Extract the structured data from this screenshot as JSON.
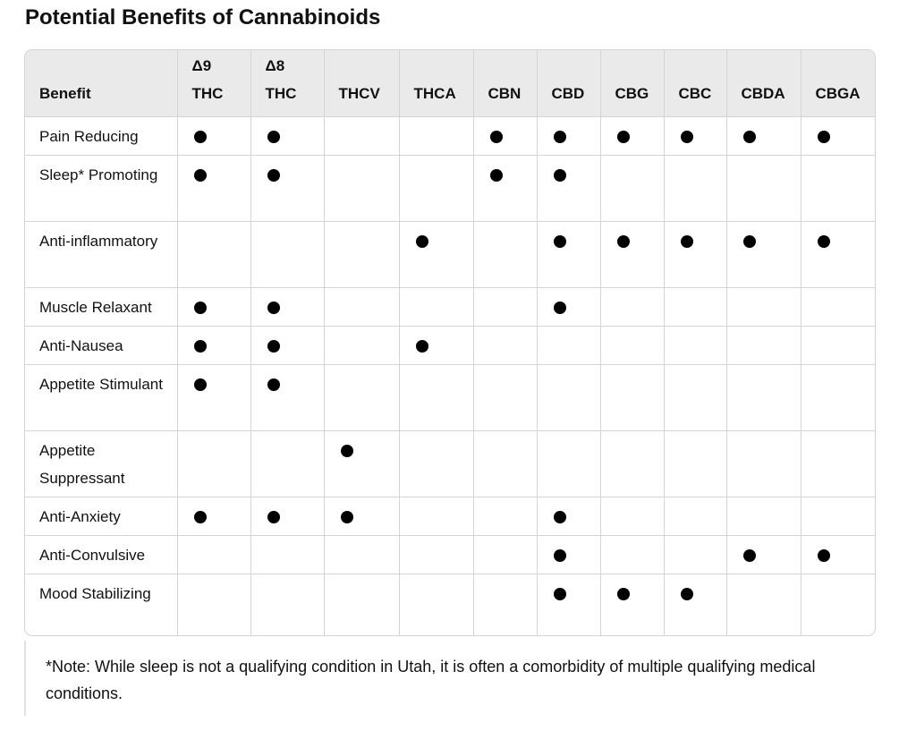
{
  "title": "Potential Benefits of Cannabinoids",
  "table": {
    "header_benefit": "Benefit",
    "columns": [
      {
        "line1": "Δ9",
        "line2": "THC"
      },
      {
        "line1": "Δ8",
        "line2": "THC"
      },
      {
        "line1": "",
        "line2": "THCV"
      },
      {
        "line1": "",
        "line2": "THCA"
      },
      {
        "line1": "",
        "line2": "CBN"
      },
      {
        "line1": "",
        "line2": "CBD"
      },
      {
        "line1": "",
        "line2": "CBG"
      },
      {
        "line1": "",
        "line2": "CBC"
      },
      {
        "line1": "",
        "line2": "CBDA"
      },
      {
        "line1": "",
        "line2": "CBGA"
      }
    ],
    "rows": [
      {
        "benefit": "Pain Reducing",
        "marks": [
          true,
          true,
          false,
          false,
          true,
          true,
          true,
          true,
          true,
          true
        ]
      },
      {
        "benefit": "Sleep* Promoting",
        "marks": [
          true,
          true,
          false,
          false,
          true,
          true,
          false,
          false,
          false,
          false
        ]
      },
      {
        "benefit": "Anti-inflammatory",
        "marks": [
          false,
          false,
          false,
          true,
          false,
          true,
          true,
          true,
          true,
          true
        ]
      },
      {
        "benefit": "Muscle Relaxant",
        "marks": [
          true,
          true,
          false,
          false,
          false,
          true,
          false,
          false,
          false,
          false
        ]
      },
      {
        "benefit": "Anti-Nausea",
        "marks": [
          true,
          true,
          false,
          true,
          false,
          false,
          false,
          false,
          false,
          false
        ]
      },
      {
        "benefit": "Appetite Stimulant",
        "marks": [
          true,
          true,
          false,
          false,
          false,
          false,
          false,
          false,
          false,
          false
        ]
      },
      {
        "benefit": "Appetite Suppressant",
        "marks": [
          false,
          false,
          true,
          false,
          false,
          false,
          false,
          false,
          false,
          false
        ]
      },
      {
        "benefit": "Anti-Anxiety",
        "marks": [
          true,
          true,
          true,
          false,
          false,
          true,
          false,
          false,
          false,
          false
        ]
      },
      {
        "benefit": "Anti-Convulsive",
        "marks": [
          false,
          false,
          false,
          false,
          false,
          true,
          false,
          false,
          true,
          true
        ]
      },
      {
        "benefit": "Mood Stabilizing",
        "marks": [
          false,
          false,
          false,
          false,
          false,
          true,
          true,
          true,
          false,
          false
        ]
      }
    ]
  },
  "note": "*Note: While sleep is not a qualifying condition in Utah, it is often a comorbidity of multiple qualifying medical conditions."
}
